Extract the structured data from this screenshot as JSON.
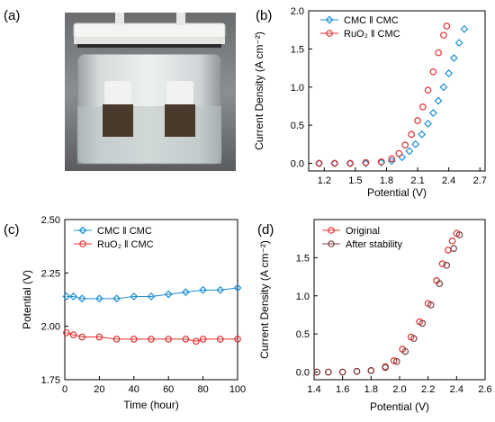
{
  "panels": {
    "a": {
      "letter": "(a)"
    },
    "b": {
      "letter": "(b)"
    },
    "c": {
      "letter": "(c)"
    },
    "d": {
      "letter": "(d)"
    }
  },
  "colors": {
    "blue": "#1f8fd6",
    "red": "#e03030",
    "brown": "#7a4040"
  },
  "chart_data": [
    {
      "id": "b",
      "type": "scatter",
      "xlabel": "Potential (V)",
      "ylabel": "Current Density (A cm⁻²)",
      "xlim": [
        1.05,
        2.75
      ],
      "ylim": [
        -0.1,
        2.0
      ],
      "xticks": [
        "1.2",
        "1.5",
        "1.8",
        "2.1",
        "2.4",
        "2.7"
      ],
      "yticks": [
        "0.0",
        "0.5",
        "1.0",
        "1.5",
        "2.0"
      ],
      "legend_position": "top-left",
      "series": [
        {
          "name": "CMC ‖ CMC",
          "color": "#1f8fd6",
          "marker": "diamond",
          "x": [
            1.15,
            1.3,
            1.45,
            1.6,
            1.75,
            1.85,
            1.95,
            2.02,
            2.08,
            2.14,
            2.2,
            2.25,
            2.3,
            2.35,
            2.4,
            2.45,
            2.5,
            2.55
          ],
          "y": [
            0.0,
            0.0,
            0.0,
            0.0,
            0.01,
            0.03,
            0.08,
            0.16,
            0.25,
            0.38,
            0.52,
            0.66,
            0.82,
            1.0,
            1.18,
            1.38,
            1.58,
            1.76
          ]
        },
        {
          "name": "RuO₂ ‖ CMC",
          "color": "#e03030",
          "marker": "circle",
          "x": [
            1.15,
            1.3,
            1.45,
            1.6,
            1.75,
            1.85,
            1.92,
            1.98,
            2.04,
            2.1,
            2.15,
            2.2,
            2.25,
            2.3,
            2.35,
            2.38
          ],
          "y": [
            0.0,
            0.0,
            0.0,
            0.01,
            0.02,
            0.06,
            0.13,
            0.24,
            0.38,
            0.56,
            0.74,
            0.96,
            1.2,
            1.45,
            1.68,
            1.8
          ]
        }
      ]
    },
    {
      "id": "c",
      "type": "line",
      "xlabel": "Time (hour)",
      "ylabel": "Potential (V)",
      "xlim": [
        0,
        100
      ],
      "ylim": [
        1.75,
        2.5
      ],
      "xticks": [
        "0",
        "20",
        "40",
        "60",
        "80",
        "100"
      ],
      "yticks": [
        "1.75",
        "2.00",
        "2.25",
        "2.50"
      ],
      "legend_position": "top-left",
      "series": [
        {
          "name": "CMC ‖ CMC",
          "color": "#1f8fd6",
          "marker": "diamond",
          "x": [
            1,
            5,
            10,
            20,
            30,
            40,
            50,
            60,
            70,
            80,
            90,
            100
          ],
          "y": [
            2.14,
            2.14,
            2.13,
            2.13,
            2.13,
            2.14,
            2.14,
            2.15,
            2.16,
            2.17,
            2.17,
            2.18
          ]
        },
        {
          "name": "RuO₂ ‖ CMC",
          "color": "#e03030",
          "marker": "circle",
          "x": [
            1,
            5,
            10,
            20,
            30,
            40,
            50,
            60,
            70,
            76,
            80,
            90,
            100
          ],
          "y": [
            1.97,
            1.96,
            1.95,
            1.95,
            1.94,
            1.94,
            1.94,
            1.94,
            1.94,
            1.93,
            1.94,
            1.94,
            1.94
          ]
        }
      ]
    },
    {
      "id": "d",
      "type": "scatter",
      "xlabel": "Potential (V)",
      "ylabel": "Current Density (A cm⁻²)",
      "xlim": [
        1.4,
        2.6
      ],
      "ylim": [
        -0.1,
        2.0
      ],
      "xticks": [
        "1.4",
        "1.6",
        "1.8",
        "2.0",
        "2.2",
        "2.4",
        "2.6"
      ],
      "yticks": [
        "0.0",
        "0.5",
        "1.0",
        "1.5"
      ],
      "legend_position": "top-left",
      "series": [
        {
          "name": "Original",
          "color": "#e03030",
          "marker": "circle",
          "x": [
            1.42,
            1.5,
            1.6,
            1.7,
            1.8,
            1.9,
            1.96,
            2.02,
            2.08,
            2.14,
            2.2,
            2.26,
            2.3,
            2.34,
            2.37,
            2.4
          ],
          "y": [
            0.0,
            0.0,
            0.0,
            0.01,
            0.02,
            0.07,
            0.15,
            0.3,
            0.46,
            0.66,
            0.9,
            1.2,
            1.42,
            1.6,
            1.72,
            1.82
          ]
        },
        {
          "name": "After stability",
          "color": "#7a4040",
          "marker": "circle",
          "x": [
            1.42,
            1.5,
            1.6,
            1.7,
            1.8,
            1.9,
            1.98,
            2.04,
            2.1,
            2.16,
            2.22,
            2.28,
            2.33,
            2.38,
            2.42
          ],
          "y": [
            0.0,
            0.0,
            0.0,
            0.01,
            0.02,
            0.06,
            0.14,
            0.27,
            0.44,
            0.64,
            0.88,
            1.16,
            1.4,
            1.62,
            1.8
          ]
        }
      ]
    }
  ]
}
